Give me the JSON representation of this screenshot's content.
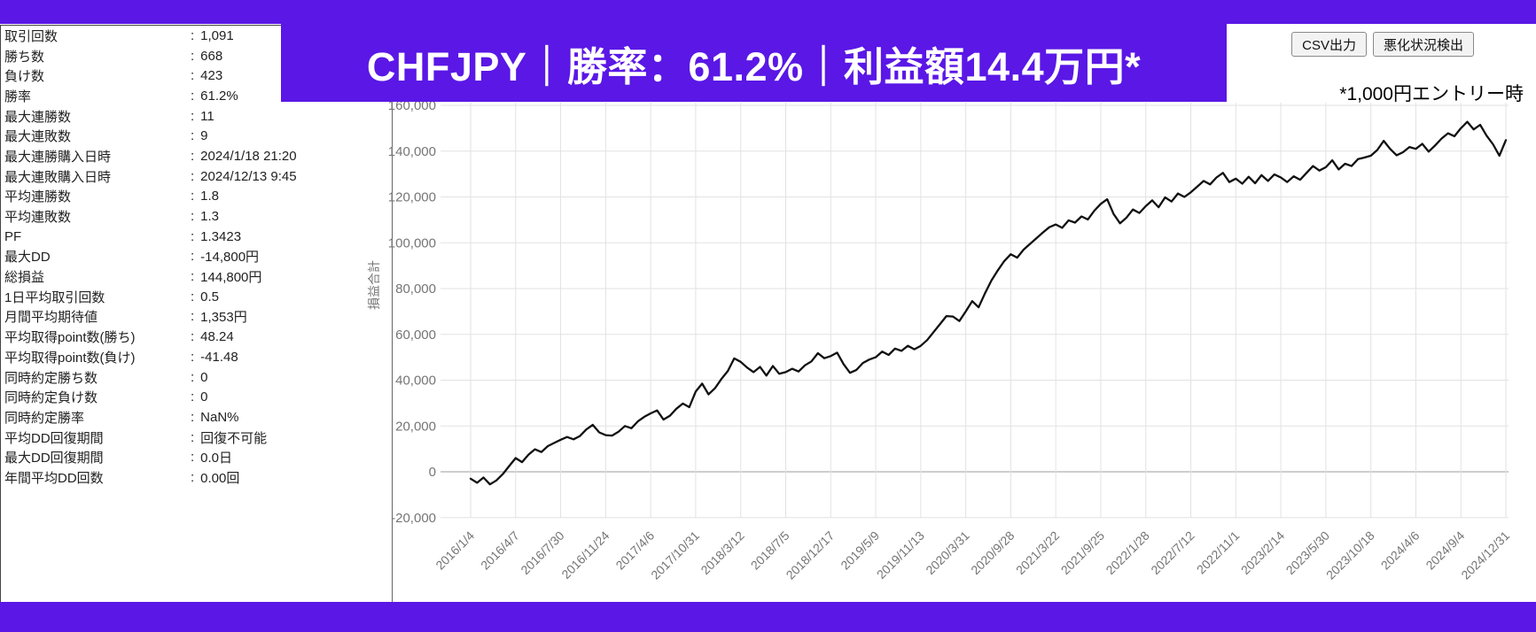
{
  "colors": {
    "accent_purple": "#5a17e6",
    "line": "#111111",
    "grid": "#e2e2e2",
    "grid_zero": "#9e9e9e",
    "axis_text": "#757575"
  },
  "banner": {
    "title": "CHFJPY｜勝率：61.2%｜利益額14.4万円*"
  },
  "toolbar": {
    "csv_button": "CSV出力",
    "detect_button": "悪化状況検出",
    "note": "*1,000円エントリー時"
  },
  "stats": {
    "separator": ":",
    "rows": [
      {
        "label": "取引回数",
        "value": "1,091"
      },
      {
        "label": "勝ち数",
        "value": "668"
      },
      {
        "label": "負け数",
        "value": "423"
      },
      {
        "label": "勝率",
        "value": "61.2%"
      },
      {
        "label": "最大連勝数",
        "value": "11"
      },
      {
        "label": "最大連敗数",
        "value": "9"
      },
      {
        "label": "最大連勝購入日時",
        "value": "2024/1/18 21:20"
      },
      {
        "label": "最大連敗購入日時",
        "value": "2024/12/13 9:45"
      },
      {
        "label": "平均連勝数",
        "value": "1.8"
      },
      {
        "label": "平均連敗数",
        "value": "1.3"
      },
      {
        "label": "PF",
        "value": "1.3423"
      },
      {
        "label": "最大DD",
        "value": "-14,800円"
      },
      {
        "label": "総損益",
        "value": "144,800円"
      },
      {
        "label": "1日平均取引回数",
        "value": "0.5"
      },
      {
        "label": "月間平均期待値",
        "value": "1,353円"
      },
      {
        "label": "平均取得point数(勝ち)",
        "value": "48.24"
      },
      {
        "label": "平均取得point数(負け)",
        "value": "-41.48"
      },
      {
        "label": "同時約定勝ち数",
        "value": "0"
      },
      {
        "label": "同時約定負け数",
        "value": "0"
      },
      {
        "label": "同時約定勝率",
        "value": "NaN%"
      },
      {
        "label": "平均DD回復期間",
        "value": "回復不可能"
      },
      {
        "label": "最大DD回復期間",
        "value": "0.0日"
      },
      {
        "label": "年間平均DD回数",
        "value": "0.00回"
      }
    ]
  },
  "chart_data": {
    "type": "line",
    "title": "",
    "xlabel": "",
    "ylabel": "損益合計",
    "ylim": [
      -20000,
      160000
    ],
    "grid": true,
    "legend_position": "none",
    "y_ticks": [
      -20000,
      0,
      20000,
      40000,
      60000,
      80000,
      100000,
      120000,
      140000,
      160000
    ],
    "x_ticks": [
      "2016/1/4",
      "2016/4/7",
      "2016/7/30",
      "2016/11/24",
      "2017/4/6",
      "2017/10/31",
      "2018/3/12",
      "2018/7/5",
      "2018/12/17",
      "2019/5/9",
      "2019/11/13",
      "2020/3/31",
      "2020/9/28",
      "2021/3/22",
      "2021/9/25",
      "2022/1/28",
      "2022/7/12",
      "2022/11/1",
      "2023/2/14",
      "2023/5/30",
      "2023/10/18",
      "2024/4/6",
      "2024/9/4",
      "2024/12/31"
    ],
    "series": [
      {
        "name": "損益合計",
        "values": [
          -3000,
          -4800,
          -2500,
          -5500,
          -3800,
          -1000,
          2500,
          6000,
          4200,
          7500,
          9800,
          8600,
          11200,
          12600,
          14000,
          15200,
          14200,
          15600,
          18500,
          20500,
          17200,
          16000,
          15800,
          17500,
          20000,
          19000,
          22000,
          24000,
          25500,
          26800,
          22800,
          24500,
          27500,
          29800,
          28200,
          35000,
          38500,
          33800,
          36500,
          40500,
          44000,
          49500,
          48000,
          45500,
          43500,
          45800,
          42000,
          46200,
          42800,
          43500,
          45000,
          43800,
          46500,
          48200,
          51800,
          49600,
          50500,
          52000,
          47000,
          43200,
          44500,
          47500,
          49000,
          50000,
          52500,
          51000,
          53800,
          52800,
          55000,
          53500,
          55000,
          57500,
          61000,
          64500,
          68000,
          67800,
          65800,
          70000,
          74500,
          71800,
          78000,
          83500,
          88000,
          92000,
          95000,
          93500,
          97000,
          99500,
          102000,
          104500,
          106800,
          108000,
          106500,
          109800,
          108800,
          111500,
          110200,
          114000,
          117000,
          119000,
          112500,
          108500,
          111000,
          114500,
          113000,
          116000,
          118500,
          115500,
          119800,
          118000,
          121500,
          120000,
          122000,
          124500,
          127000,
          125500,
          128500,
          130500,
          126500,
          128000,
          125800,
          128800,
          126000,
          129500,
          127000,
          129800,
          128500,
          126500,
          129000,
          127500,
          130500,
          133500,
          131500,
          133000,
          136000,
          132000,
          134500,
          133500,
          136500,
          137200,
          138000,
          140500,
          144500,
          141000,
          138200,
          139500,
          141800,
          141000,
          143200,
          139800,
          142500,
          145500,
          147800,
          146500,
          150000,
          152800,
          149500,
          151500,
          146800,
          143000,
          138000,
          144800
        ]
      }
    ]
  }
}
